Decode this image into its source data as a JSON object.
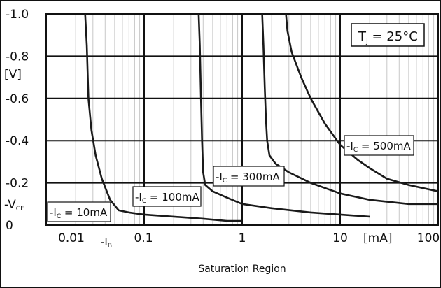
{
  "chart_data": {
    "type": "line",
    "title": "",
    "caption": "Saturation Region",
    "xscale": "log",
    "xlim": [
      0.01,
      100
    ],
    "x_ticks": [
      {
        "value": 0.01,
        "label": "0.01"
      },
      {
        "value": 0.1,
        "label": "0.1"
      },
      {
        "value": 1,
        "label": "1"
      },
      {
        "value": 10,
        "label": "10"
      },
      {
        "value": 100,
        "label": "100"
      }
    ],
    "x_unit_label": "[mA]",
    "x_axis_name": {
      "prefix": "-I",
      "sub": "B"
    },
    "y_direction": "inverted",
    "ylim": [
      0,
      -1.0
    ],
    "y_ticks": [
      {
        "value": 0,
        "label": "0"
      },
      {
        "value": -0.2,
        "label": "-0.2"
      },
      {
        "value": -0.4,
        "label": "-0.4"
      },
      {
        "value": -0.6,
        "label": "-0.6"
      },
      {
        "value": -0.8,
        "label": "-0.8"
      },
      {
        "value": -1.0,
        "label": "-1.0"
      }
    ],
    "y_unit_label": "[V]",
    "y_axis_name": {
      "prefix": "-V",
      "sub": "CE"
    },
    "grid": true,
    "annotation": {
      "prefix": "T",
      "sub": "j",
      "suffix": " = 25°C",
      "position": "top-right"
    },
    "series": [
      {
        "name": "-I_C = 10mA",
        "label": {
          "prefix": "-I",
          "sub": "C",
          "suffix": " = 10mA"
        },
        "points": [
          [
            0.025,
            -1.0
          ],
          [
            0.026,
            -0.85
          ],
          [
            0.027,
            -0.6
          ],
          [
            0.029,
            -0.45
          ],
          [
            0.032,
            -0.33
          ],
          [
            0.037,
            -0.22
          ],
          [
            0.045,
            -0.12
          ],
          [
            0.055,
            -0.07
          ],
          [
            0.07,
            -0.06
          ],
          [
            0.1,
            -0.05
          ],
          [
            0.2,
            -0.04
          ],
          [
            0.4,
            -0.03
          ],
          [
            0.7,
            -0.02
          ],
          [
            1.0,
            -0.02
          ]
        ]
      },
      {
        "name": "-I_C = 100mA",
        "label": {
          "prefix": "-I",
          "sub": "C",
          "suffix": " = 100mA"
        },
        "points": [
          [
            0.36,
            -1.0
          ],
          [
            0.37,
            -0.85
          ],
          [
            0.38,
            -0.6
          ],
          [
            0.39,
            -0.4
          ],
          [
            0.4,
            -0.25
          ],
          [
            0.42,
            -0.19
          ],
          [
            0.5,
            -0.16
          ],
          [
            0.7,
            -0.13
          ],
          [
            1.0,
            -0.1
          ],
          [
            2.0,
            -0.08
          ],
          [
            5.0,
            -0.06
          ],
          [
            10,
            -0.05
          ],
          [
            20,
            -0.04
          ]
        ]
      },
      {
        "name": "-I_C = 300mA",
        "label": {
          "prefix": "-I",
          "sub": "C",
          "suffix": " = 300mA"
        },
        "points": [
          [
            1.6,
            -1.0
          ],
          [
            1.65,
            -0.85
          ],
          [
            1.7,
            -0.65
          ],
          [
            1.75,
            -0.5
          ],
          [
            1.8,
            -0.4
          ],
          [
            1.9,
            -0.33
          ],
          [
            2.2,
            -0.29
          ],
          [
            3,
            -0.25
          ],
          [
            5,
            -0.2
          ],
          [
            10,
            -0.15
          ],
          [
            20,
            -0.12
          ],
          [
            50,
            -0.1
          ],
          [
            100,
            -0.1
          ]
        ]
      },
      {
        "name": "-I_C = 500mA",
        "label": {
          "prefix": "-I",
          "sub": "C",
          "suffix": " = 500mA"
        },
        "points": [
          [
            2.8,
            -1.0
          ],
          [
            2.9,
            -0.92
          ],
          [
            3.2,
            -0.82
          ],
          [
            4,
            -0.7
          ],
          [
            5,
            -0.6
          ],
          [
            7,
            -0.48
          ],
          [
            10,
            -0.38
          ],
          [
            15,
            -0.31
          ],
          [
            20,
            -0.27
          ],
          [
            30,
            -0.22
          ],
          [
            50,
            -0.19
          ],
          [
            100,
            -0.16
          ]
        ]
      }
    ]
  }
}
